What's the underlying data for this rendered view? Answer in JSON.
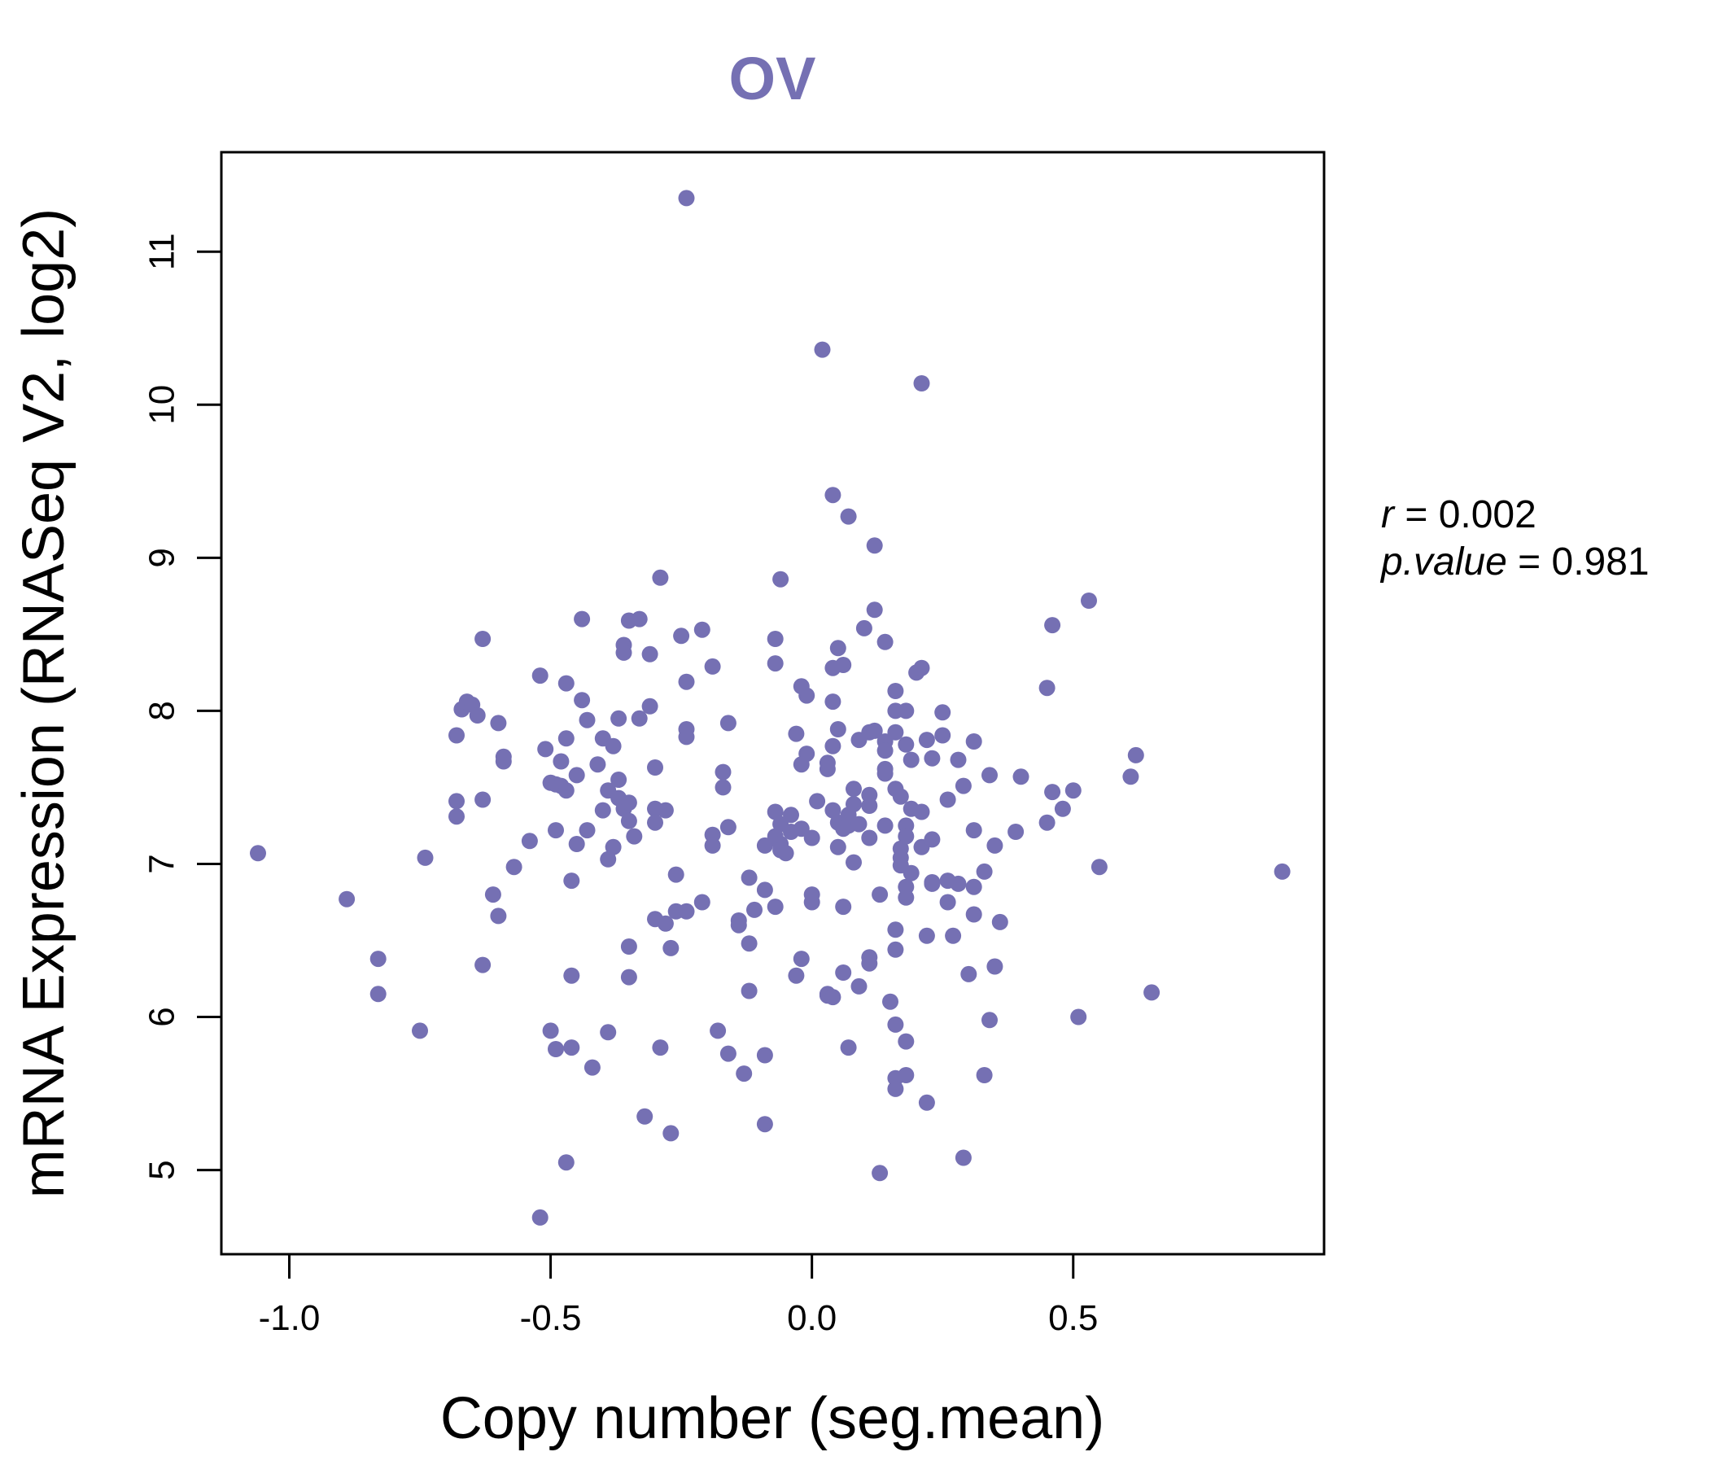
{
  "chart_data": {
    "type": "scatter",
    "title": "OV",
    "xlabel": "Copy number (seg.mean)",
    "ylabel": "mRNA Expression (RNASeq V2, log2)",
    "xlim": [
      -1.13,
      0.98
    ],
    "ylim": [
      4.45,
      11.65
    ],
    "x_ticks": [
      -1.0,
      -0.5,
      0.0,
      0.5
    ],
    "x_tick_labels": [
      "-1.0",
      "-0.5",
      "0.0",
      "0.5"
    ],
    "y_ticks": [
      5,
      6,
      7,
      8,
      9,
      10,
      11
    ],
    "y_tick_labels": [
      "5",
      "6",
      "7",
      "8",
      "9",
      "10",
      "11"
    ],
    "point_color": "#7570b3",
    "title_color": "#7570b3",
    "stats": {
      "r_label": "r",
      "r_value": "0.002",
      "p_label": "p.value",
      "p_value": "0.981"
    },
    "points": [
      [
        -1.06,
        7.07
      ],
      [
        -0.89,
        6.77
      ],
      [
        -0.83,
        6.38
      ],
      [
        -0.83,
        6.15
      ],
      [
        -0.75,
        5.91
      ],
      [
        -0.74,
        7.04
      ],
      [
        -0.68,
        7.84
      ],
      [
        -0.68,
        7.41
      ],
      [
        -0.68,
        7.31
      ],
      [
        -0.67,
        8.01
      ],
      [
        -0.66,
        8.06
      ],
      [
        -0.65,
        8.04
      ],
      [
        -0.64,
        7.97
      ],
      [
        -0.63,
        8.47
      ],
      [
        -0.63,
        7.42
      ],
      [
        -0.63,
        6.34
      ],
      [
        -0.61,
        6.8
      ],
      [
        -0.6,
        6.66
      ],
      [
        -0.6,
        7.92
      ],
      [
        -0.59,
        7.67
      ],
      [
        -0.59,
        7.7
      ],
      [
        -0.57,
        6.98
      ],
      [
        -0.54,
        7.15
      ],
      [
        -0.52,
        8.23
      ],
      [
        -0.52,
        4.69
      ],
      [
        -0.51,
        7.75
      ],
      [
        -0.5,
        7.53
      ],
      [
        -0.5,
        5.91
      ],
      [
        -0.49,
        7.52
      ],
      [
        -0.49,
        7.22
      ],
      [
        -0.49,
        5.79
      ],
      [
        -0.48,
        7.67
      ],
      [
        -0.48,
        7.51
      ],
      [
        -0.47,
        7.48
      ],
      [
        -0.47,
        7.82
      ],
      [
        -0.47,
        8.18
      ],
      [
        -0.47,
        5.05
      ],
      [
        -0.46,
        6.89
      ],
      [
        -0.46,
        6.27
      ],
      [
        -0.46,
        5.8
      ],
      [
        -0.45,
        7.13
      ],
      [
        -0.45,
        7.58
      ],
      [
        -0.44,
        8.6
      ],
      [
        -0.44,
        8.07
      ],
      [
        -0.43,
        7.22
      ],
      [
        -0.43,
        7.94
      ],
      [
        -0.42,
        5.67
      ],
      [
        -0.41,
        7.65
      ],
      [
        -0.4,
        7.82
      ],
      [
        -0.4,
        7.35
      ],
      [
        -0.39,
        7.48
      ],
      [
        -0.39,
        5.9
      ],
      [
        -0.39,
        7.03
      ],
      [
        -0.38,
        7.77
      ],
      [
        -0.38,
        7.11
      ],
      [
        -0.37,
        7.95
      ],
      [
        -0.37,
        7.55
      ],
      [
        -0.37,
        7.43
      ],
      [
        -0.36,
        8.43
      ],
      [
        -0.36,
        8.38
      ],
      [
        -0.36,
        7.36
      ],
      [
        -0.35,
        7.28
      ],
      [
        -0.35,
        7.4
      ],
      [
        -0.35,
        6.46
      ],
      [
        -0.35,
        6.26
      ],
      [
        -0.35,
        8.59
      ],
      [
        -0.34,
        7.18
      ],
      [
        -0.33,
        7.95
      ],
      [
        -0.33,
        8.6
      ],
      [
        -0.32,
        5.35
      ],
      [
        -0.31,
        8.03
      ],
      [
        -0.31,
        8.37
      ],
      [
        -0.3,
        7.36
      ],
      [
        -0.3,
        7.27
      ],
      [
        -0.3,
        7.63
      ],
      [
        -0.3,
        6.64
      ],
      [
        -0.29,
        8.87
      ],
      [
        -0.29,
        5.8
      ],
      [
        -0.28,
        7.35
      ],
      [
        -0.28,
        6.61
      ],
      [
        -0.27,
        6.45
      ],
      [
        -0.27,
        5.24
      ],
      [
        -0.26,
        6.69
      ],
      [
        -0.26,
        6.93
      ],
      [
        -0.25,
        8.49
      ],
      [
        -0.24,
        7.83
      ],
      [
        -0.24,
        8.19
      ],
      [
        -0.24,
        7.88
      ],
      [
        -0.24,
        6.69
      ],
      [
        -0.24,
        11.35
      ],
      [
        -0.21,
        8.53
      ],
      [
        -0.21,
        6.75
      ],
      [
        -0.19,
        8.29
      ],
      [
        -0.19,
        7.19
      ],
      [
        -0.19,
        7.12
      ],
      [
        -0.18,
        5.91
      ],
      [
        -0.17,
        7.5
      ],
      [
        -0.17,
        7.6
      ],
      [
        -0.16,
        5.76
      ],
      [
        -0.16,
        7.92
      ],
      [
        -0.16,
        7.24
      ],
      [
        -0.14,
        6.6
      ],
      [
        -0.14,
        6.63
      ],
      [
        -0.13,
        5.63
      ],
      [
        -0.12,
        6.17
      ],
      [
        -0.12,
        6.48
      ],
      [
        -0.12,
        6.91
      ],
      [
        -0.11,
        6.7
      ],
      [
        -0.09,
        7.12
      ],
      [
        -0.09,
        5.75
      ],
      [
        -0.09,
        6.83
      ],
      [
        -0.09,
        5.3
      ],
      [
        -0.07,
        8.47
      ],
      [
        -0.07,
        8.31
      ],
      [
        -0.07,
        7.34
      ],
      [
        -0.07,
        7.18
      ],
      [
        -0.07,
        6.72
      ],
      [
        -0.06,
        7.13
      ],
      [
        -0.06,
        7.26
      ],
      [
        -0.06,
        8.86
      ],
      [
        -0.06,
        7.09
      ],
      [
        -0.05,
        7.07
      ],
      [
        -0.04,
        7.21
      ],
      [
        -0.04,
        7.32
      ],
      [
        -0.03,
        7.85
      ],
      [
        -0.03,
        6.27
      ],
      [
        -0.02,
        8.16
      ],
      [
        -0.02,
        6.38
      ],
      [
        -0.02,
        7.65
      ],
      [
        -0.02,
        7.23
      ],
      [
        -0.01,
        8.1
      ],
      [
        -0.01,
        7.72
      ],
      [
        0.0,
        6.8
      ],
      [
        0.0,
        6.75
      ],
      [
        0.0,
        7.17
      ],
      [
        0.01,
        7.41
      ],
      [
        0.02,
        10.36
      ],
      [
        0.03,
        7.62
      ],
      [
        0.03,
        7.66
      ],
      [
        0.03,
        6.15
      ],
      [
        0.03,
        6.14
      ],
      [
        0.04,
        6.13
      ],
      [
        0.04,
        7.35
      ],
      [
        0.04,
        8.06
      ],
      [
        0.04,
        7.77
      ],
      [
        0.04,
        9.41
      ],
      [
        0.04,
        8.28
      ],
      [
        0.05,
        7.88
      ],
      [
        0.05,
        7.27
      ],
      [
        0.05,
        7.11
      ],
      [
        0.05,
        8.41
      ],
      [
        0.06,
        7.23
      ],
      [
        0.06,
        8.3
      ],
      [
        0.06,
        6.72
      ],
      [
        0.06,
        6.29
      ],
      [
        0.07,
        7.32
      ],
      [
        0.07,
        7.25
      ],
      [
        0.07,
        5.8
      ],
      [
        0.07,
        9.27
      ],
      [
        0.08,
        7.01
      ],
      [
        0.08,
        7.49
      ],
      [
        0.08,
        7.39
      ],
      [
        0.09,
        7.81
      ],
      [
        0.09,
        6.2
      ],
      [
        0.09,
        7.26
      ],
      [
        0.1,
        8.54
      ],
      [
        0.11,
        7.86
      ],
      [
        0.11,
        7.45
      ],
      [
        0.11,
        7.38
      ],
      [
        0.11,
        7.17
      ],
      [
        0.11,
        6.39
      ],
      [
        0.11,
        6.35
      ],
      [
        0.12,
        9.08
      ],
      [
        0.12,
        8.66
      ],
      [
        0.12,
        7.87
      ],
      [
        0.13,
        6.8
      ],
      [
        0.13,
        4.98
      ],
      [
        0.14,
        8.45
      ],
      [
        0.14,
        7.8
      ],
      [
        0.14,
        7.74
      ],
      [
        0.14,
        7.62
      ],
      [
        0.14,
        7.59
      ],
      [
        0.14,
        7.25
      ],
      [
        0.15,
        6.1
      ],
      [
        0.16,
        8.13
      ],
      [
        0.16,
        8.0
      ],
      [
        0.16,
        7.86
      ],
      [
        0.16,
        7.49
      ],
      [
        0.16,
        6.57
      ],
      [
        0.16,
        6.44
      ],
      [
        0.16,
        5.95
      ],
      [
        0.16,
        5.6
      ],
      [
        0.16,
        5.53
      ],
      [
        0.17,
        7.44
      ],
      [
        0.17,
        7.1
      ],
      [
        0.17,
        7.04
      ],
      [
        0.17,
        6.99
      ],
      [
        0.18,
        8.0
      ],
      [
        0.18,
        7.78
      ],
      [
        0.18,
        7.25
      ],
      [
        0.18,
        7.18
      ],
      [
        0.18,
        6.85
      ],
      [
        0.18,
        6.78
      ],
      [
        0.18,
        5.84
      ],
      [
        0.18,
        5.62
      ],
      [
        0.19,
        7.68
      ],
      [
        0.19,
        7.36
      ],
      [
        0.19,
        6.94
      ],
      [
        0.2,
        8.25
      ],
      [
        0.21,
        10.14
      ],
      [
        0.21,
        8.28
      ],
      [
        0.21,
        7.34
      ],
      [
        0.21,
        7.11
      ],
      [
        0.22,
        7.81
      ],
      [
        0.22,
        6.53
      ],
      [
        0.22,
        5.44
      ],
      [
        0.23,
        7.69
      ],
      [
        0.23,
        7.16
      ],
      [
        0.23,
        6.88
      ],
      [
        0.23,
        6.87
      ],
      [
        0.25,
        7.99
      ],
      [
        0.25,
        7.84
      ],
      [
        0.26,
        7.42
      ],
      [
        0.26,
        6.89
      ],
      [
        0.26,
        6.75
      ],
      [
        0.27,
        6.53
      ],
      [
        0.28,
        7.68
      ],
      [
        0.28,
        6.87
      ],
      [
        0.29,
        5.08
      ],
      [
        0.29,
        7.51
      ],
      [
        0.3,
        6.28
      ],
      [
        0.31,
        7.8
      ],
      [
        0.31,
        7.22
      ],
      [
        0.31,
        6.85
      ],
      [
        0.31,
        6.67
      ],
      [
        0.33,
        5.62
      ],
      [
        0.33,
        6.95
      ],
      [
        0.34,
        7.58
      ],
      [
        0.34,
        5.98
      ],
      [
        0.35,
        6.33
      ],
      [
        0.35,
        7.12
      ],
      [
        0.36,
        6.62
      ],
      [
        0.39,
        7.21
      ],
      [
        0.4,
        7.57
      ],
      [
        0.45,
        7.27
      ],
      [
        0.45,
        8.15
      ],
      [
        0.46,
        7.47
      ],
      [
        0.46,
        8.56
      ],
      [
        0.48,
        7.36
      ],
      [
        0.5,
        7.48
      ],
      [
        0.51,
        6.0
      ],
      [
        0.53,
        8.72
      ],
      [
        0.55,
        6.98
      ],
      [
        0.61,
        7.57
      ],
      [
        0.62,
        7.71
      ],
      [
        0.65,
        6.16
      ],
      [
        0.9,
        6.95
      ]
    ]
  }
}
